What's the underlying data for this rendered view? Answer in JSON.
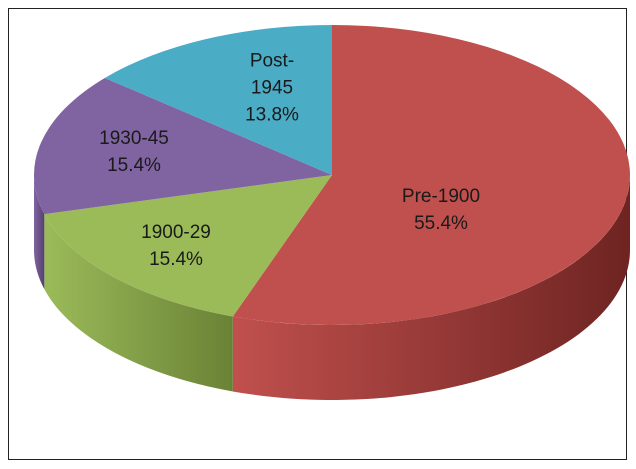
{
  "chart_data": {
    "type": "pie3d",
    "categories": [
      "Pre-1900",
      "1900-29",
      "1930-45",
      "Post-1945"
    ],
    "values": [
      55.4,
      15.4,
      15.4,
      13.8
    ],
    "value_labels": [
      "55.4%",
      "15.4%",
      "15.4%",
      "13.8%"
    ],
    "colors": [
      "#c0504d",
      "#9bbb59",
      "#8064a2",
      "#4bacc6"
    ],
    "side_colors": [
      "#6e2422",
      "#6a8236",
      "#55406f",
      "#2e7a8e"
    ]
  }
}
